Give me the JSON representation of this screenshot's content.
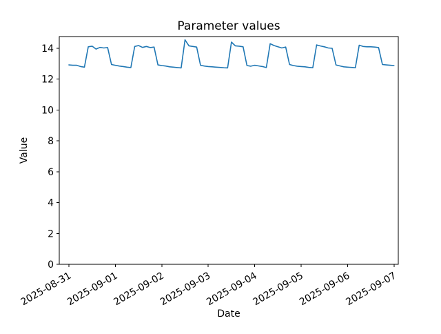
{
  "figure": {
    "background": "#ffffff"
  },
  "chart_data": {
    "type": "line",
    "title": "Parameter values",
    "xlabel": "Date",
    "ylabel": "Value",
    "legend": null,
    "grid": false,
    "line_color": "#1f77b4",
    "axis_color": "#000000",
    "x_tick_labels": [
      "2025-08-31",
      "2025-09-01",
      "2025-09-02",
      "2025-09-03",
      "2025-09-04",
      "2025-09-05",
      "2025-09-06",
      "2025-09-07"
    ],
    "y_ticks": [
      0,
      2,
      4,
      6,
      8,
      10,
      12,
      14
    ],
    "ylim": [
      0,
      14.76
    ],
    "xlim_hours": [
      -5,
      170.2
    ],
    "series_start": "2025-08-31 00:00",
    "step_hours": 2,
    "values": [
      12.92,
      12.9,
      12.9,
      12.82,
      12.78,
      14.1,
      14.14,
      13.95,
      14.06,
      14.02,
      14.05,
      12.95,
      12.9,
      12.85,
      12.82,
      12.78,
      12.75,
      14.12,
      14.18,
      14.06,
      14.12,
      14.05,
      14.08,
      12.92,
      12.88,
      12.85,
      12.8,
      12.78,
      12.75,
      12.73,
      14.55,
      14.16,
      14.12,
      14.08,
      12.9,
      12.85,
      12.82,
      12.8,
      12.78,
      12.76,
      12.74,
      12.73,
      14.4,
      14.16,
      14.14,
      14.1,
      12.88,
      12.84,
      12.9,
      12.86,
      12.82,
      12.75,
      14.3,
      14.18,
      14.1,
      14.02,
      14.08,
      12.95,
      12.88,
      12.84,
      12.82,
      12.8,
      12.76,
      12.74,
      14.22,
      14.15,
      14.1,
      14.02,
      14.0,
      12.92,
      12.86,
      12.8,
      12.78,
      12.76,
      12.74,
      14.2,
      14.12,
      14.1,
      14.1,
      14.08,
      14.05,
      12.95,
      12.92,
      12.9,
      12.88
    ]
  }
}
